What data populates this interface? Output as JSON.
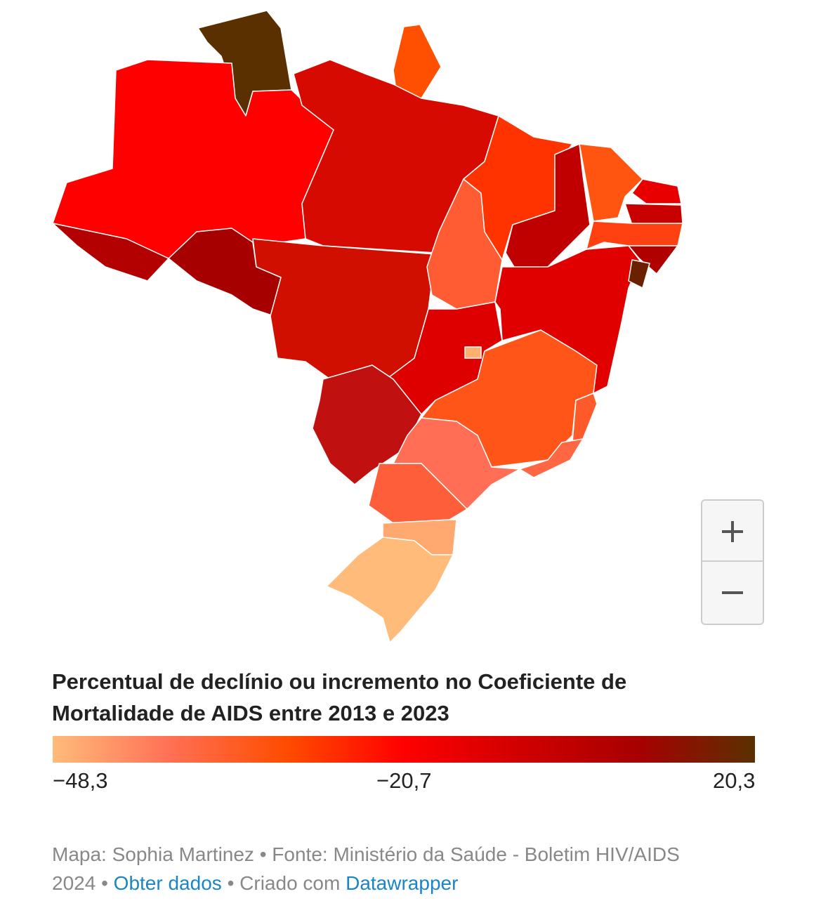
{
  "title": "Percentual de declínio ou incremento no Coeficiente de Mortalidade de AIDS entre 2013 e 2023",
  "legend": {
    "colors": [
      "#ffbb7a",
      "#ff7055",
      "#ff4c00",
      "#ff0000",
      "#d00000",
      "#a80000",
      "#5a3000"
    ],
    "ticks": [
      {
        "value": -48.3,
        "label": "−48,3"
      },
      {
        "value": -20.7,
        "label": "−20,7"
      },
      {
        "value": 20.3,
        "label": "20,3"
      }
    ]
  },
  "footer": {
    "source": "Mapa: Sophia Martinez • Fonte: Ministério da Saúde - Boletim HIV/AIDS 2024",
    "separator": "•",
    "get_data": "Obter dados",
    "created_with": "Criado com",
    "tool": "Datawrapper"
  }
}
